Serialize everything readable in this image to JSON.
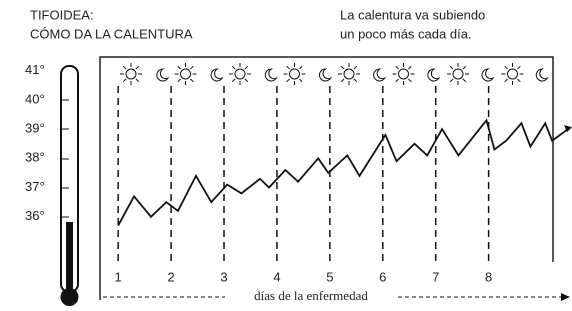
{
  "chart_data": {
    "type": "line",
    "title": [
      "TIFOIDEA:",
      "CÓMO DA LA CALENTURA"
    ],
    "annotation": [
      "La calentura va subiendo",
      "un poco más cada día."
    ],
    "x_label": "días de la enfermedad",
    "x": [
      1.0,
      1.3,
      1.62,
      1.91,
      2.13,
      2.47,
      2.76,
      3.06,
      3.33,
      3.68,
      3.85,
      4.16,
      4.4,
      4.78,
      4.97,
      5.33,
      5.56,
      6.05,
      6.26,
      6.6,
      6.84,
      7.12,
      7.43,
      7.96,
      8.11,
      8.33,
      8.62,
      8.79,
      9.07,
      9.2,
      9.5
    ],
    "values": [
      35.7,
      36.7,
      36.0,
      36.5,
      36.2,
      37.4,
      36.5,
      37.1,
      36.8,
      37.3,
      37.0,
      37.6,
      37.2,
      38.0,
      37.5,
      38.1,
      37.4,
      38.8,
      37.9,
      38.5,
      38.1,
      39.0,
      38.1,
      39.3,
      38.3,
      38.6,
      39.2,
      38.4,
      39.2,
      38.6,
      39.0
    ],
    "color": "#111",
    "xlim": [
      0.6,
      9.5
    ],
    "xticks": [
      1,
      2,
      3,
      4,
      5,
      6,
      7,
      8
    ],
    "ylim": [
      35,
      41.5
    ],
    "yticks": [
      {
        "value": 36,
        "label": "36°"
      },
      {
        "value": 37,
        "label": "37°"
      },
      {
        "value": 38,
        "label": "38°"
      },
      {
        "value": 39,
        "label": "39°"
      },
      {
        "value": 40,
        "label": "40°"
      },
      {
        "value": 41,
        "label": "41°"
      }
    ],
    "grid": true
  }
}
